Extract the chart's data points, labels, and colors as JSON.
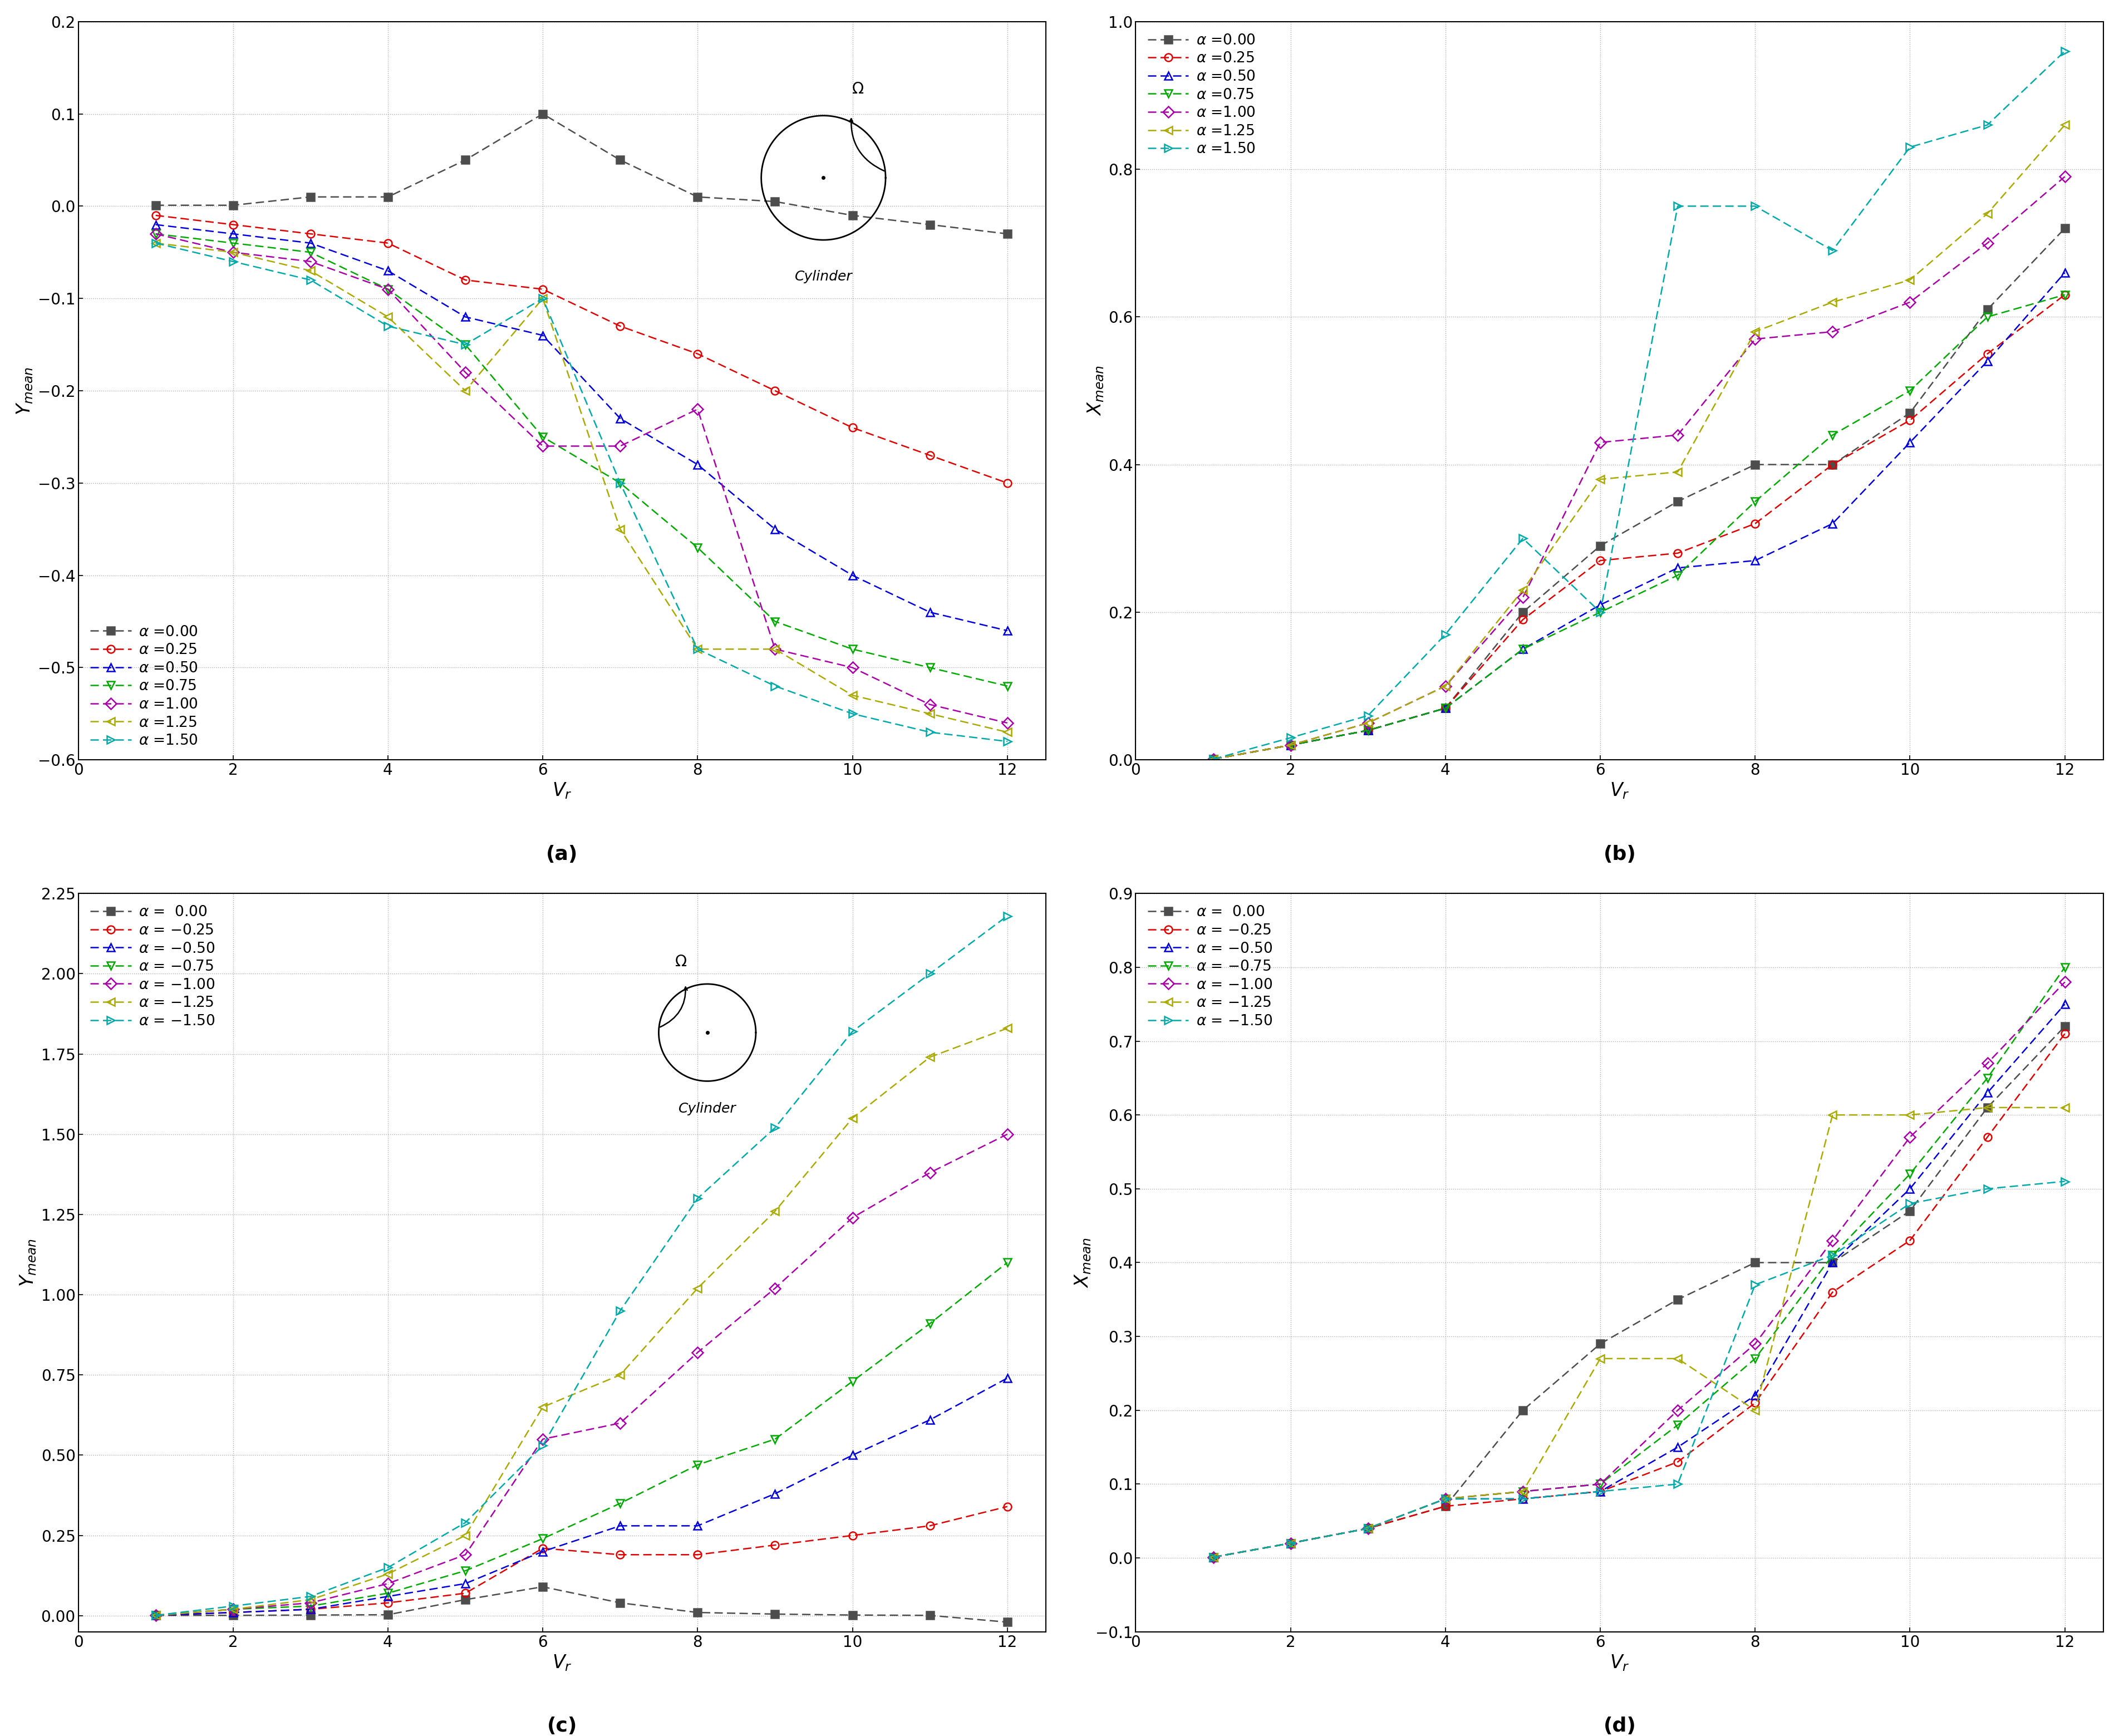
{
  "vr": [
    1,
    2,
    3,
    4,
    5,
    6,
    7,
    8,
    9,
    10,
    11,
    12
  ],
  "a_ymean": {
    "0.00": [
      0.001,
      0.001,
      0.01,
      0.01,
      0.05,
      0.1,
      0.05,
      0.01,
      0.005,
      -0.01,
      -0.02,
      -0.03
    ],
    "0.25": [
      -0.01,
      -0.02,
      -0.03,
      -0.04,
      -0.08,
      -0.09,
      -0.13,
      -0.16,
      -0.2,
      -0.24,
      -0.27,
      -0.3
    ],
    "0.50": [
      -0.02,
      -0.03,
      -0.04,
      -0.07,
      -0.12,
      -0.14,
      -0.23,
      -0.28,
      -0.35,
      -0.4,
      -0.44,
      -0.46
    ],
    "0.75": [
      -0.03,
      -0.04,
      -0.05,
      -0.09,
      -0.15,
      -0.25,
      -0.3,
      -0.37,
      -0.45,
      -0.48,
      -0.5,
      -0.52
    ],
    "1.00": [
      -0.03,
      -0.05,
      -0.06,
      -0.09,
      -0.18,
      -0.26,
      -0.26,
      -0.22,
      -0.48,
      -0.5,
      -0.54,
      -0.56
    ],
    "1.25": [
      -0.04,
      -0.05,
      -0.07,
      -0.12,
      -0.2,
      -0.1,
      -0.35,
      -0.48,
      -0.48,
      -0.53,
      -0.55,
      -0.57
    ],
    "1.50": [
      -0.04,
      -0.06,
      -0.08,
      -0.13,
      -0.15,
      -0.1,
      -0.3,
      -0.48,
      -0.52,
      -0.55,
      -0.57,
      -0.58
    ]
  },
  "b_xmean": {
    "0.00": [
      0.001,
      0.02,
      0.04,
      0.07,
      0.2,
      0.29,
      0.35,
      0.4,
      0.4,
      0.47,
      0.61,
      0.72
    ],
    "0.25": [
      0.001,
      0.02,
      0.04,
      0.07,
      0.19,
      0.27,
      0.28,
      0.32,
      0.4,
      0.46,
      0.55,
      0.63
    ],
    "0.50": [
      0.001,
      0.02,
      0.04,
      0.07,
      0.15,
      0.21,
      0.26,
      0.27,
      0.32,
      0.43,
      0.54,
      0.66
    ],
    "0.75": [
      0.001,
      0.02,
      0.04,
      0.07,
      0.15,
      0.2,
      0.25,
      0.35,
      0.44,
      0.5,
      0.6,
      0.63
    ],
    "1.00": [
      0.001,
      0.02,
      0.05,
      0.1,
      0.22,
      0.43,
      0.44,
      0.57,
      0.58,
      0.62,
      0.7,
      0.79
    ],
    "1.25": [
      0.001,
      0.02,
      0.05,
      0.1,
      0.23,
      0.38,
      0.39,
      0.58,
      0.62,
      0.65,
      0.74,
      0.86
    ],
    "1.50": [
      0.001,
      0.03,
      0.06,
      0.17,
      0.3,
      0.2,
      0.75,
      0.75,
      0.69,
      0.83,
      0.86,
      0.96
    ]
  },
  "c_ymean": {
    "0.00": [
      0.001,
      0.001,
      0.002,
      0.003,
      0.05,
      0.09,
      0.04,
      0.01,
      0.005,
      0.002,
      0.001,
      -0.02
    ],
    "-0.25": [
      0.001,
      0.01,
      0.02,
      0.04,
      0.07,
      0.21,
      0.19,
      0.19,
      0.22,
      0.25,
      0.28,
      0.34
    ],
    "-0.50": [
      0.001,
      0.01,
      0.02,
      0.06,
      0.1,
      0.2,
      0.28,
      0.28,
      0.38,
      0.5,
      0.61,
      0.74
    ],
    "-0.75": [
      0.001,
      0.02,
      0.03,
      0.07,
      0.14,
      0.24,
      0.35,
      0.47,
      0.55,
      0.73,
      0.91,
      1.1
    ],
    "-1.00": [
      0.001,
      0.02,
      0.04,
      0.1,
      0.19,
      0.55,
      0.6,
      0.82,
      1.02,
      1.24,
      1.38,
      1.5
    ],
    "-1.25": [
      0.001,
      0.02,
      0.05,
      0.13,
      0.25,
      0.65,
      0.75,
      1.02,
      1.26,
      1.55,
      1.74,
      1.83
    ],
    "-1.50": [
      0.001,
      0.03,
      0.06,
      0.15,
      0.29,
      0.53,
      0.95,
      1.3,
      1.52,
      1.82,
      2.0,
      2.18
    ]
  },
  "d_xmean": {
    "0.00": [
      0.001,
      0.02,
      0.04,
      0.07,
      0.2,
      0.29,
      0.35,
      0.4,
      0.4,
      0.47,
      0.61,
      0.72
    ],
    "-0.25": [
      0.001,
      0.02,
      0.04,
      0.07,
      0.08,
      0.09,
      0.13,
      0.21,
      0.36,
      0.43,
      0.57,
      0.71
    ],
    "-0.50": [
      0.001,
      0.02,
      0.04,
      0.08,
      0.08,
      0.09,
      0.15,
      0.22,
      0.4,
      0.5,
      0.63,
      0.75
    ],
    "-0.75": [
      0.001,
      0.02,
      0.04,
      0.08,
      0.09,
      0.1,
      0.18,
      0.27,
      0.41,
      0.52,
      0.65,
      0.8
    ],
    "-1.00": [
      0.001,
      0.02,
      0.04,
      0.08,
      0.09,
      0.1,
      0.2,
      0.29,
      0.43,
      0.57,
      0.67,
      0.78
    ],
    "-1.25": [
      0.001,
      0.02,
      0.04,
      0.08,
      0.09,
      0.27,
      0.27,
      0.2,
      0.6,
      0.6,
      0.61,
      0.61
    ],
    "-1.50": [
      0.001,
      0.02,
      0.04,
      0.08,
      0.08,
      0.09,
      0.1,
      0.37,
      0.41,
      0.48,
      0.5,
      0.51
    ]
  },
  "colors": {
    "0.00": "#4d4d4d",
    "0.25": "#e00000",
    "-0.25": "#e00000",
    "0.50": "#0000dd",
    "-0.50": "#0000dd",
    "0.75": "#00aa00",
    "-0.75": "#00aa00",
    "1.00": "#aa00aa",
    "-1.00": "#aa00aa",
    "1.25": "#aaaa00",
    "-1.25": "#aaaa00",
    "1.50": "#00aaaa",
    "-1.50": "#00aaaa"
  },
  "markers": {
    "0.00": "s",
    "0.25": "o",
    "-0.25": "o",
    "0.50": "^",
    "-0.50": "^",
    "0.75": "v",
    "-0.75": "v",
    "1.00": "D",
    "-1.00": "D",
    "1.25": "<",
    "-1.25": "<",
    "1.50": ">",
    "-1.50": ">"
  }
}
